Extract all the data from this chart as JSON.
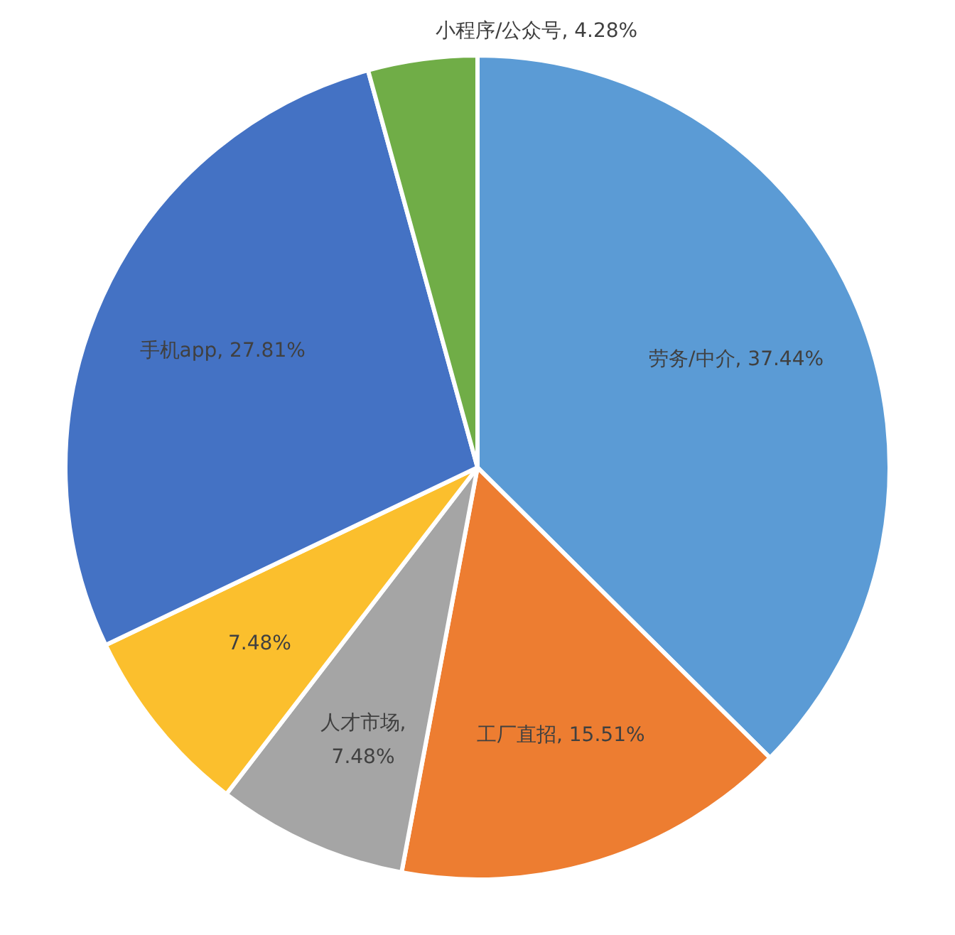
{
  "chart_data": {
    "type": "pie",
    "categories": [
      "劳务/中介",
      "工厂直招",
      "人才市场",
      null,
      "手机app",
      "小程序/公众号"
    ],
    "values": [
      37.44,
      15.51,
      7.48,
      7.48,
      27.81,
      4.28
    ],
    "value_labels": [
      ", 37.44%",
      ", 15.51%",
      ", 7.48%",
      "7.48%",
      ", 27.81%",
      ", 4.28%"
    ],
    "colors": [
      "#5b9bd5",
      "#ed7d31",
      "#a5a5a5",
      "#fbbf2d",
      "#4472c4",
      "#70ad47"
    ]
  }
}
